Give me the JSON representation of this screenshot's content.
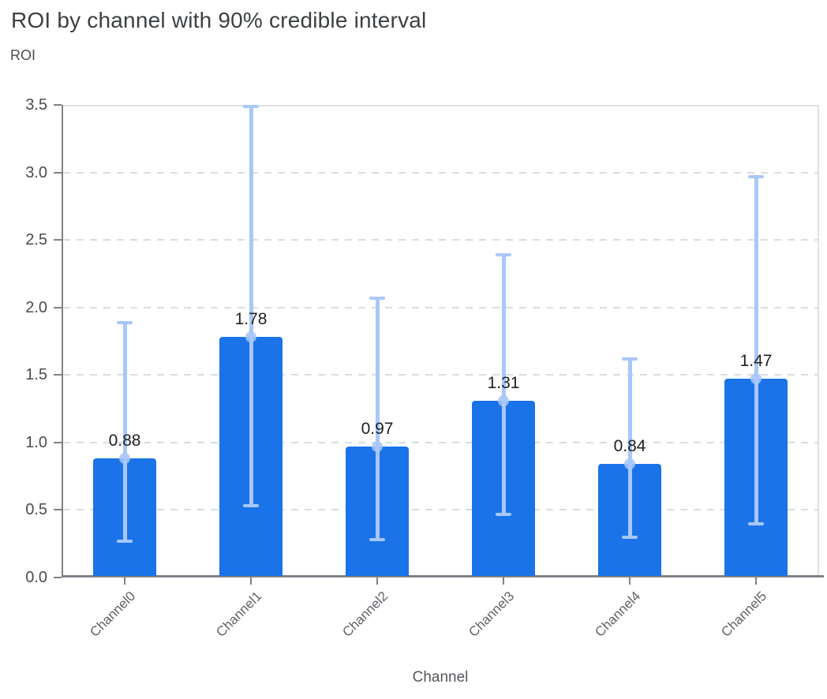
{
  "header": {
    "title": "ROI by channel with 90% credible interval",
    "y_axis_title": "ROI",
    "x_axis_title": "Channel"
  },
  "chart_data": {
    "type": "bar",
    "title": "ROI by channel with 90% credible interval",
    "ylabel": "ROI",
    "xlabel": "Channel",
    "categories": [
      "Channel0",
      "Channel1",
      "Channel2",
      "Channel3",
      "Channel4",
      "Channel5"
    ],
    "values": [
      0.88,
      1.78,
      0.97,
      1.31,
      0.84,
      1.47
    ],
    "value_labels": [
      "0.88",
      "1.78",
      "0.97",
      "1.31",
      "0.84",
      "1.47"
    ],
    "error_bars": {
      "label": "90% credible interval",
      "low": [
        0.27,
        0.53,
        0.28,
        0.47,
        0.3,
        0.4
      ],
      "high": [
        1.89,
        3.49,
        2.07,
        2.39,
        1.62,
        2.97
      ]
    },
    "y_tick_labels": [
      "0.0",
      "0.5",
      "1.0",
      "1.5",
      "2.0",
      "2.5",
      "3.0",
      "3.5"
    ],
    "ylim": [
      0,
      3.5
    ],
    "grid": {
      "horizontal": true,
      "style": "dashed",
      "legend": "none"
    },
    "colors": {
      "bar": "#1a73e8",
      "error_bar": "#a8c7fa",
      "gridline": "#dadce0",
      "axis": "#7d8287",
      "value_label_text": "#202124",
      "tick_label_text": "#494c50",
      "category_label_text": "#5f6368",
      "title_text": "#3c4043"
    }
  }
}
